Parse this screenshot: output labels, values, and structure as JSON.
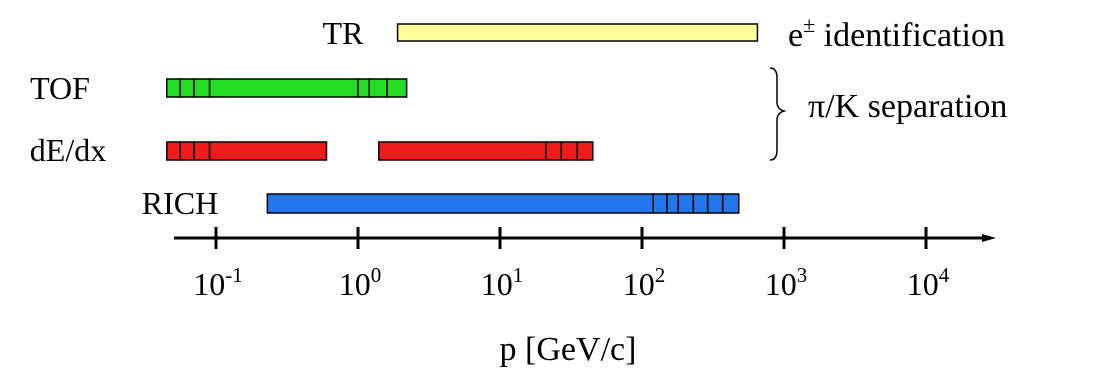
{
  "chart_data": {
    "type": "range-bar",
    "title": "",
    "xlabel": "p [GeV/c]",
    "ylabel": "",
    "x_scale": "log",
    "xlim": [
      0.03,
      10000
    ],
    "x_ticks": [
      {
        "value": 0.1,
        "base": "10",
        "exp": "-1"
      },
      {
        "value": 1,
        "base": "10",
        "exp": "0"
      },
      {
        "value": 10,
        "base": "10",
        "exp": "1"
      },
      {
        "value": 100,
        "base": "10",
        "exp": "2"
      },
      {
        "value": 1000,
        "base": "10",
        "exp": "3"
      },
      {
        "value": 10000,
        "base": "10",
        "exp": "4"
      }
    ],
    "series": [
      {
        "name": "TR",
        "color": "#ffff99",
        "segments": [
          [
            1.9,
            650
          ]
        ],
        "ext_low": [],
        "ext_high": []
      },
      {
        "name": "TOF",
        "color": "#22dd22",
        "segments": [
          [
            0.09,
            1.0
          ]
        ],
        "ext_low": [
          0.045,
          0.056,
          0.07,
          0.09
        ],
        "ext_high": [
          1.0,
          1.2,
          1.6,
          2.2
        ]
      },
      {
        "name": "dE/dx",
        "color": "#ee1c1c",
        "segments": [
          [
            0.09,
            0.6
          ],
          [
            1.4,
            21
          ]
        ],
        "ext_low": [
          0.045,
          0.056,
          0.07,
          0.09
        ],
        "ext_high": [
          21,
          27,
          35,
          45
        ]
      },
      {
        "name": "RICH",
        "color": "#2277ee",
        "segments": [
          [
            0.23,
            120
          ]
        ],
        "ext_low": [],
        "ext_high": [
          120,
          150,
          180,
          230,
          290,
          370,
          480
        ]
      }
    ],
    "groups": [
      {
        "label_main": "e",
        "label_sup": "±",
        "label_rest": " identification",
        "members": [
          "TR"
        ]
      },
      {
        "label": "π/K separation",
        "members": [
          "TOF",
          "dE/dx"
        ]
      }
    ],
    "grid": false,
    "legend": "none"
  }
}
